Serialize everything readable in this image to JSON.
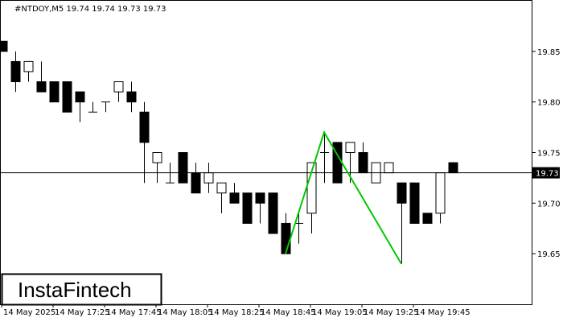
{
  "chart_data": {
    "type": "candlestick",
    "title": "#NTDOY,M5  19.74 19.74 19.73 19.73",
    "watermark": "InstaFintech",
    "categories": [
      "14 May 2025",
      null,
      null,
      null,
      "14 May 17:25",
      null,
      null,
      null,
      "14 May 17:45",
      null,
      null,
      null,
      "14 May 18:05",
      null,
      null,
      null,
      "14 May 18:25",
      null,
      null,
      null,
      "14 May 18:45",
      null,
      null,
      null,
      "14 May 19:05",
      null,
      null,
      null,
      "14 May 19:25",
      null,
      null,
      null,
      "14 May 19:45",
      null,
      null,
      null
    ],
    "open": [
      19.86,
      19.84,
      19.83,
      19.82,
      19.82,
      19.82,
      19.81,
      19.79,
      19.8,
      19.81,
      19.81,
      19.79,
      19.74,
      19.72,
      19.75,
      19.73,
      19.72,
      19.71,
      19.71,
      19.71,
      19.71,
      19.71,
      19.68,
      19.68,
      19.69,
      19.75,
      19.76,
      19.75,
      19.75,
      19.72,
      19.73,
      19.72,
      19.72,
      19.69,
      19.69,
      19.74
    ],
    "high": [
      19.86,
      19.85,
      19.84,
      19.84,
      19.82,
      19.82,
      19.81,
      19.8,
      19.8,
      19.82,
      19.82,
      19.8,
      19.75,
      19.74,
      19.75,
      19.74,
      19.74,
      19.72,
      19.72,
      19.71,
      19.71,
      19.71,
      19.69,
      19.69,
      19.74,
      19.77,
      19.76,
      19.76,
      19.76,
      19.74,
      19.74,
      19.72,
      19.72,
      19.69,
      19.73,
      19.74
    ],
    "low": [
      19.85,
      19.81,
      19.82,
      19.81,
      19.8,
      19.79,
      19.78,
      19.79,
      19.79,
      19.8,
      19.79,
      19.72,
      19.72,
      19.72,
      19.72,
      19.71,
      19.71,
      19.69,
      19.7,
      19.68,
      19.68,
      19.67,
      19.65,
      19.66,
      19.67,
      19.72,
      19.72,
      19.72,
      19.73,
      19.72,
      19.73,
      19.64,
      19.68,
      19.68,
      19.68,
      19.73
    ],
    "close": [
      19.85,
      19.82,
      19.84,
      19.81,
      19.8,
      19.79,
      19.8,
      19.79,
      19.8,
      19.82,
      19.8,
      19.76,
      19.75,
      19.72,
      19.72,
      19.71,
      19.73,
      19.72,
      19.7,
      19.68,
      19.7,
      19.67,
      19.65,
      19.68,
      19.74,
      19.75,
      19.72,
      19.76,
      19.73,
      19.74,
      19.74,
      19.7,
      19.68,
      19.68,
      19.73,
      19.73
    ],
    "current_price": 19.73,
    "pattern": {
      "color": "#00c800",
      "points": [
        {
          "index": 22,
          "value": 19.65
        },
        {
          "index": 25,
          "value": 19.77
        },
        {
          "index": 31,
          "value": 19.64
        }
      ]
    },
    "ylim": [
      19.6,
      19.9
    ],
    "yticks": [
      19.65,
      {
        "value": 19.7,
        "label": "19.70"
      },
      19.75,
      {
        "value": 19.8,
        "label": "19.80"
      },
      19.85
    ]
  }
}
